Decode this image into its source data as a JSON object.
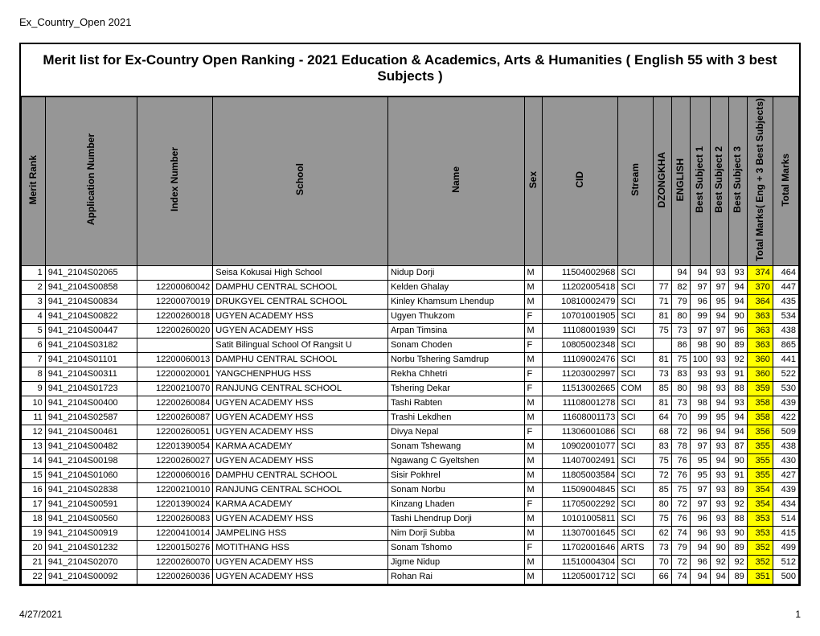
{
  "page": {
    "top_label": "Ex_Country_Open 2021",
    "title": "Merit list for Ex-Country Open Ranking - 2021    Education & Academics, Arts & Humanities    ( English 55 with 3 best Subjects )",
    "footer_date": "4/27/2021",
    "footer_page": "1"
  },
  "columns": [
    "Merit Rank",
    "Application Number",
    "Index Number",
    "School",
    "Name",
    "Sex",
    "CID",
    "Stream",
    "DZONGKHA",
    "ENGLISH",
    "Best Subject 1",
    "Best Subject 2",
    "Best Subject 3",
    "Total Marks( Eng + 3 Best Subjects)",
    "Total Marks"
  ],
  "highlight_color": "#ffff00",
  "header_bg": "#969696",
  "rows": [
    {
      "mr": 1,
      "app": "941_2104S02065",
      "idx": "",
      "sch": "Seisa Kokusai High School",
      "name": "Nidup Dorji",
      "sex": "M",
      "cid": "11504002968",
      "str": "SCI",
      "dz": "",
      "en": 94,
      "b1": 94,
      "b2": 93,
      "b3": 93,
      "tm3": 374,
      "tm": 464
    },
    {
      "mr": 2,
      "app": "941_2104S00858",
      "idx": "12200060042",
      "sch": "DAMPHU CENTRAL SCHOOL",
      "name": "Kelden Ghalay",
      "sex": "M",
      "cid": "11202005418",
      "str": "SCI",
      "dz": 77,
      "en": 82,
      "b1": 97,
      "b2": 97,
      "b3": 94,
      "tm3": 370,
      "tm": 447
    },
    {
      "mr": 3,
      "app": "941_2104S00834",
      "idx": "12200070019",
      "sch": "DRUKGYEL CENTRAL SCHOOL",
      "name": "Kinley Khamsum Lhendup",
      "sex": "M",
      "cid": "10810002479",
      "str": "SCI",
      "dz": 71,
      "en": 79,
      "b1": 96,
      "b2": 95,
      "b3": 94,
      "tm3": 364,
      "tm": 435
    },
    {
      "mr": 4,
      "app": "941_2104S00822",
      "idx": "12200260018",
      "sch": "UGYEN ACADEMY HSS",
      "name": "Ugyen Thukzom",
      "sex": "F",
      "cid": "10701001905",
      "str": "SCI",
      "dz": 81,
      "en": 80,
      "b1": 99,
      "b2": 94,
      "b3": 90,
      "tm3": 363,
      "tm": 534
    },
    {
      "mr": 5,
      "app": "941_2104S00447",
      "idx": "12200260020",
      "sch": "UGYEN ACADEMY HSS",
      "name": "Arpan Timsina",
      "sex": "M",
      "cid": "11108001939",
      "str": "SCI",
      "dz": 75,
      "en": 73,
      "b1": 97,
      "b2": 97,
      "b3": 96,
      "tm3": 363,
      "tm": 438
    },
    {
      "mr": 6,
      "app": "941_2104S03182",
      "idx": "",
      "sch": "Satit Bilingual School Of Rangsit U",
      "name": "Sonam Choden",
      "sex": "F",
      "cid": "10805002348",
      "str": "SCI",
      "dz": "",
      "en": 86,
      "b1": 98,
      "b2": 90,
      "b3": 89,
      "tm3": 363,
      "tm": 865
    },
    {
      "mr": 7,
      "app": "941_2104S01101",
      "idx": "12200060013",
      "sch": "DAMPHU CENTRAL SCHOOL",
      "name": "Norbu Tshering Samdrup",
      "sex": "M",
      "cid": "11109002476",
      "str": "SCI",
      "dz": 81,
      "en": 75,
      "b1": 100,
      "b2": 93,
      "b3": 92,
      "tm3": 360,
      "tm": 441
    },
    {
      "mr": 8,
      "app": "941_2104S00311",
      "idx": "12200020001",
      "sch": "YANGCHENPHUG HSS",
      "name": "Rekha Chhetri",
      "sex": "F",
      "cid": "11203002997",
      "str": "SCI",
      "dz": 73,
      "en": 83,
      "b1": 93,
      "b2": 93,
      "b3": 91,
      "tm3": 360,
      "tm": 522
    },
    {
      "mr": 9,
      "app": "941_2104S01723",
      "idx": "12200210070",
      "sch": "RANJUNG CENTRAL SCHOOL",
      "name": "Tshering Dekar",
      "sex": "F",
      "cid": "11513002665",
      "str": "COM",
      "dz": 85,
      "en": 80,
      "b1": 98,
      "b2": 93,
      "b3": 88,
      "tm3": 359,
      "tm": 530
    },
    {
      "mr": 10,
      "app": "941_2104S00400",
      "idx": "12200260084",
      "sch": "UGYEN ACADEMY HSS",
      "name": "Tashi Rabten",
      "sex": "M",
      "cid": "11108001278",
      "str": "SCI",
      "dz": 81,
      "en": 73,
      "b1": 98,
      "b2": 94,
      "b3": 93,
      "tm3": 358,
      "tm": 439
    },
    {
      "mr": 11,
      "app": "941_2104S02587",
      "idx": "12200260087",
      "sch": "UGYEN ACADEMY HSS",
      "name": "Trashi Lekdhen",
      "sex": "M",
      "cid": "11608001173",
      "str": "SCI",
      "dz": 64,
      "en": 70,
      "b1": 99,
      "b2": 95,
      "b3": 94,
      "tm3": 358,
      "tm": 422
    },
    {
      "mr": 12,
      "app": "941_2104S00461",
      "idx": "12200260051",
      "sch": "UGYEN ACADEMY HSS",
      "name": "Divya Nepal",
      "sex": "F",
      "cid": "11306001086",
      "str": "SCI",
      "dz": 68,
      "en": 72,
      "b1": 96,
      "b2": 94,
      "b3": 94,
      "tm3": 356,
      "tm": 509
    },
    {
      "mr": 13,
      "app": "941_2104S00482",
      "idx": "12201390054",
      "sch": "KARMA ACADEMY",
      "name": "Sonam Tshewang",
      "sex": "M",
      "cid": "10902001077",
      "str": "SCI",
      "dz": 83,
      "en": 78,
      "b1": 97,
      "b2": 93,
      "b3": 87,
      "tm3": 355,
      "tm": 438
    },
    {
      "mr": 14,
      "app": "941_2104S00198",
      "idx": "12200260027",
      "sch": "UGYEN ACADEMY HSS",
      "name": "Ngawang C Gyeltshen",
      "sex": "M",
      "cid": "11407002491",
      "str": "SCI",
      "dz": 75,
      "en": 76,
      "b1": 95,
      "b2": 94,
      "b3": 90,
      "tm3": 355,
      "tm": 430
    },
    {
      "mr": 15,
      "app": "941_2104S01060",
      "idx": "12200060016",
      "sch": "DAMPHU CENTRAL SCHOOL",
      "name": "Sisir Pokhrel",
      "sex": "M",
      "cid": "11805003584",
      "str": "SCI",
      "dz": 72,
      "en": 76,
      "b1": 95,
      "b2": 93,
      "b3": 91,
      "tm3": 355,
      "tm": 427
    },
    {
      "mr": 16,
      "app": "941_2104S02838",
      "idx": "12200210010",
      "sch": "RANJUNG CENTRAL SCHOOL",
      "name": "Sonam Norbu",
      "sex": "M",
      "cid": "11509004845",
      "str": "SCI",
      "dz": 85,
      "en": 75,
      "b1": 97,
      "b2": 93,
      "b3": 89,
      "tm3": 354,
      "tm": 439
    },
    {
      "mr": 17,
      "app": "941_2104S00591",
      "idx": "12201390024",
      "sch": "KARMA ACADEMY",
      "name": "Kinzang Lhaden",
      "sex": "F",
      "cid": "11705002292",
      "str": "SCI",
      "dz": 80,
      "en": 72,
      "b1": 97,
      "b2": 93,
      "b3": 92,
      "tm3": 354,
      "tm": 434
    },
    {
      "mr": 18,
      "app": "941_2104S00560",
      "idx": "12200260083",
      "sch": "UGYEN ACADEMY HSS",
      "name": "Tashi Lhendrup Dorji",
      "sex": "M",
      "cid": "10101005811",
      "str": "SCI",
      "dz": 75,
      "en": 76,
      "b1": 96,
      "b2": 93,
      "b3": 88,
      "tm3": 353,
      "tm": 514
    },
    {
      "mr": 19,
      "app": "941_2104S00919",
      "idx": "12200410014",
      "sch": "JAMPELING HSS",
      "name": "Nim Dorji Subba",
      "sex": "M",
      "cid": "11307001645",
      "str": "SCI",
      "dz": 62,
      "en": 74,
      "b1": 96,
      "b2": 93,
      "b3": 90,
      "tm3": 353,
      "tm": 415
    },
    {
      "mr": 20,
      "app": "941_2104S01232",
      "idx": "12200150276",
      "sch": "MOTITHANG HSS",
      "name": "Sonam Tshomo",
      "sex": "F",
      "cid": "11702001646",
      "str": "ARTS",
      "dz": 73,
      "en": 79,
      "b1": 94,
      "b2": 90,
      "b3": 89,
      "tm3": 352,
      "tm": 499
    },
    {
      "mr": 21,
      "app": "941_2104S02070",
      "idx": "12200260070",
      "sch": "UGYEN ACADEMY HSS",
      "name": "Jigme Nidup",
      "sex": "M",
      "cid": "11510004304",
      "str": "SCI",
      "dz": 70,
      "en": 72,
      "b1": 96,
      "b2": 92,
      "b3": 92,
      "tm3": 352,
      "tm": 512
    },
    {
      "mr": 22,
      "app": "941_2104S00092",
      "idx": "12200260036",
      "sch": "UGYEN ACADEMY HSS",
      "name": "Rohan Rai",
      "sex": "M",
      "cid": "11205001712",
      "str": "SCI",
      "dz": 66,
      "en": 74,
      "b1": 94,
      "b2": 94,
      "b3": 89,
      "tm3": 351,
      "tm": 500
    }
  ]
}
